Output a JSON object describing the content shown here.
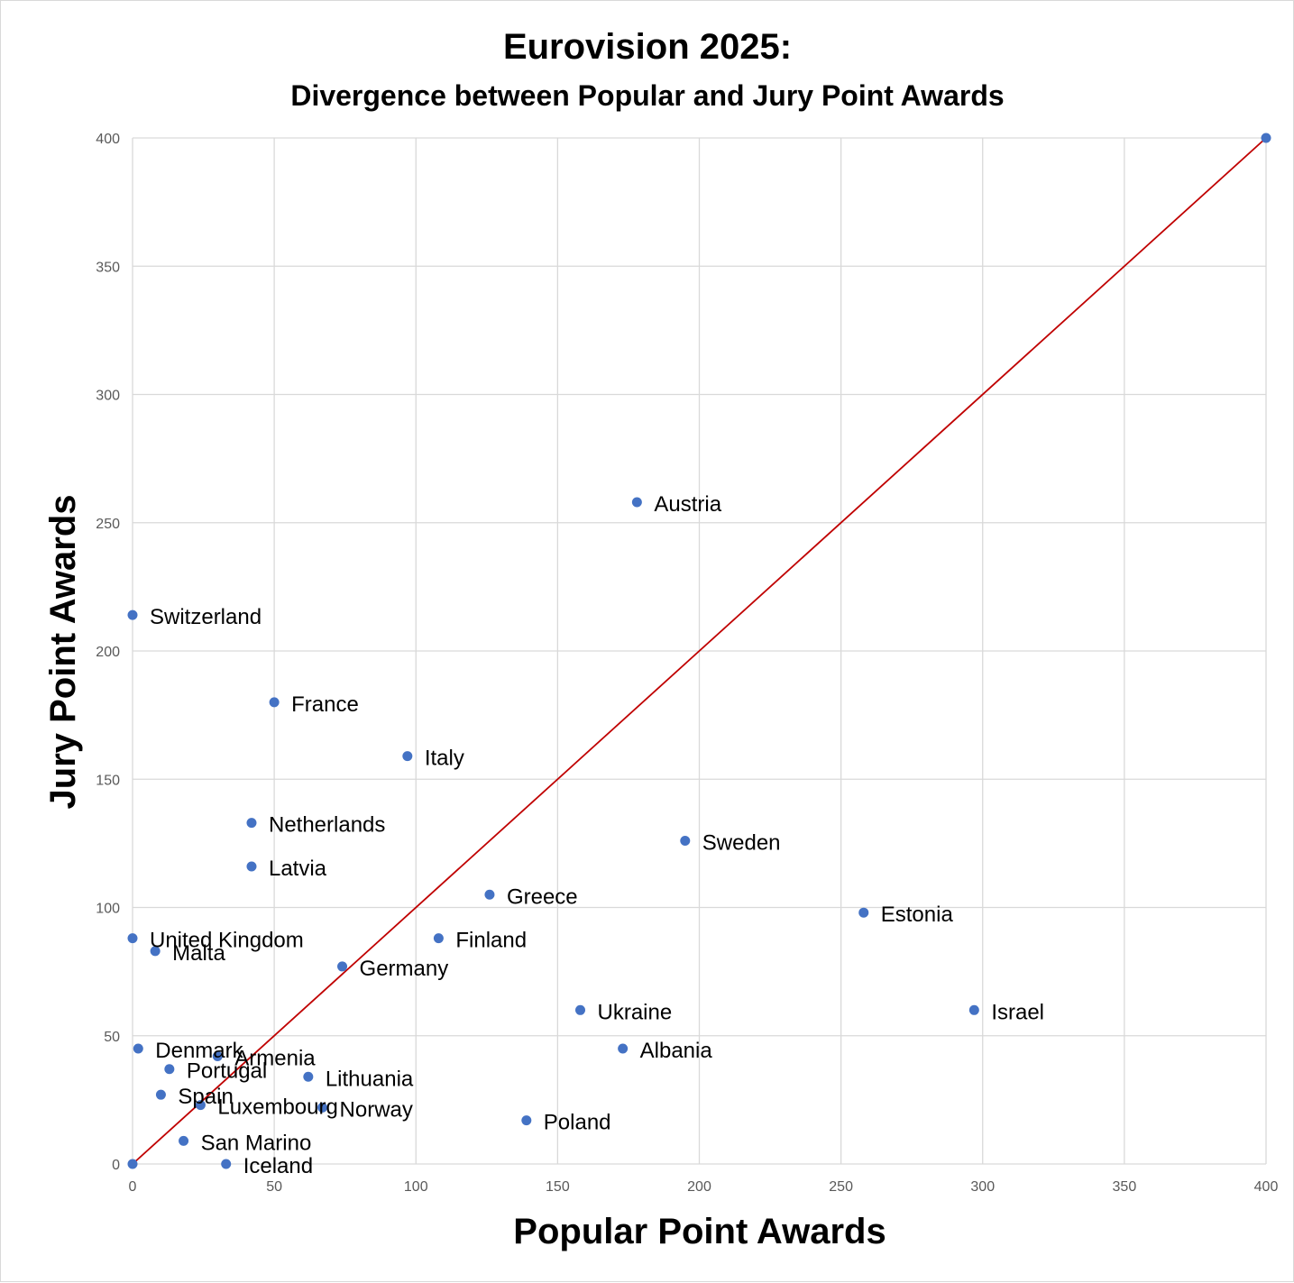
{
  "chart_data": {
    "type": "scatter",
    "title": "Eurovision 2025:",
    "subtitle": "Divergence between Popular and Jury Point Awards",
    "xlabel": "Popular Point Awards",
    "ylabel": "Jury Point Awards",
    "xlim": [
      0,
      400
    ],
    "ylim": [
      0,
      400
    ],
    "xticks": [
      0,
      50,
      100,
      150,
      200,
      250,
      300,
      350,
      400
    ],
    "yticks": [
      0,
      50,
      100,
      150,
      200,
      250,
      300,
      350,
      400
    ],
    "grid": true,
    "marker_color": "#4472c4",
    "reference_line": {
      "from": [
        0,
        0
      ],
      "to": [
        400,
        400
      ],
      "color": "#c00000"
    },
    "points": [
      {
        "label": "Austria",
        "x": 178,
        "y": 258
      },
      {
        "label": "Switzerland",
        "x": 0,
        "y": 214
      },
      {
        "label": "France",
        "x": 50,
        "y": 180
      },
      {
        "label": "Italy",
        "x": 97,
        "y": 159
      },
      {
        "label": "Netherlands",
        "x": 42,
        "y": 133
      },
      {
        "label": "Sweden",
        "x": 195,
        "y": 126
      },
      {
        "label": "Latvia",
        "x": 42,
        "y": 116
      },
      {
        "label": "Greece",
        "x": 126,
        "y": 105
      },
      {
        "label": "Estonia",
        "x": 258,
        "y": 98
      },
      {
        "label": "United Kingdom",
        "x": 0,
        "y": 88
      },
      {
        "label": "Finland",
        "x": 108,
        "y": 88
      },
      {
        "label": "Malta",
        "x": 8,
        "y": 83
      },
      {
        "label": "Germany",
        "x": 74,
        "y": 77
      },
      {
        "label": "Ukraine",
        "x": 158,
        "y": 60
      },
      {
        "label": "Israel",
        "x": 297,
        "y": 60
      },
      {
        "label": "Denmark",
        "x": 2,
        "y": 45
      },
      {
        "label": "Albania",
        "x": 173,
        "y": 45
      },
      {
        "label": "Armenia",
        "x": 30,
        "y": 42
      },
      {
        "label": "Portugal",
        "x": 13,
        "y": 37
      },
      {
        "label": "Lithuania",
        "x": 62,
        "y": 34
      },
      {
        "label": "Spain",
        "x": 10,
        "y": 27
      },
      {
        "label": "Luxembourg",
        "x": 24,
        "y": 23
      },
      {
        "label": "Norway",
        "x": 67,
        "y": 22
      },
      {
        "label": "Poland",
        "x": 139,
        "y": 17
      },
      {
        "label": "San Marino",
        "x": 18,
        "y": 9
      },
      {
        "label": "Iceland",
        "x": 33,
        "y": 0
      },
      {
        "label": "",
        "x": 0,
        "y": 0
      },
      {
        "label": "",
        "x": 400,
        "y": 400
      }
    ]
  }
}
